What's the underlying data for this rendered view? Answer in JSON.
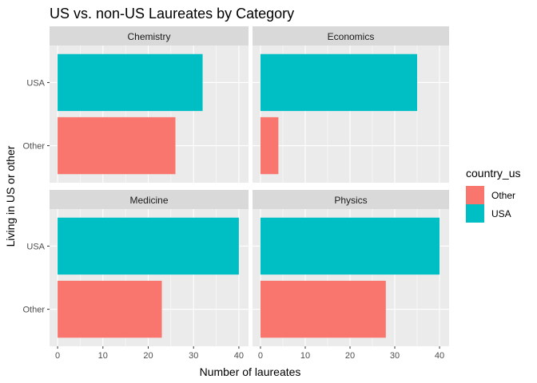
{
  "chart_data": {
    "type": "bar",
    "orientation": "horizontal",
    "title": "US vs. non-US Laureates by Category",
    "xlabel": "Number of laureates",
    "ylabel": "Living in US or other",
    "xlim": [
      0,
      42
    ],
    "xticks": [
      0,
      10,
      20,
      30,
      40
    ],
    "categories": [
      "Other",
      "USA"
    ],
    "facets": [
      {
        "name": "Chemistry",
        "values": {
          "USA": 32,
          "Other": 26
        }
      },
      {
        "name": "Economics",
        "values": {
          "USA": 35,
          "Other": 4
        }
      },
      {
        "name": "Medicine",
        "values": {
          "USA": 40,
          "Other": 23
        }
      },
      {
        "name": "Physics",
        "values": {
          "USA": 40,
          "Other": 28
        }
      }
    ],
    "legend": {
      "title": "country_us",
      "position": "right",
      "entries": [
        {
          "label": "Other",
          "color": "#F8766D"
        },
        {
          "label": "USA",
          "color": "#00BFC4"
        }
      ]
    },
    "grid": true,
    "panel_background": "#EBEBEB",
    "strip_background": "#D9D9D9"
  }
}
